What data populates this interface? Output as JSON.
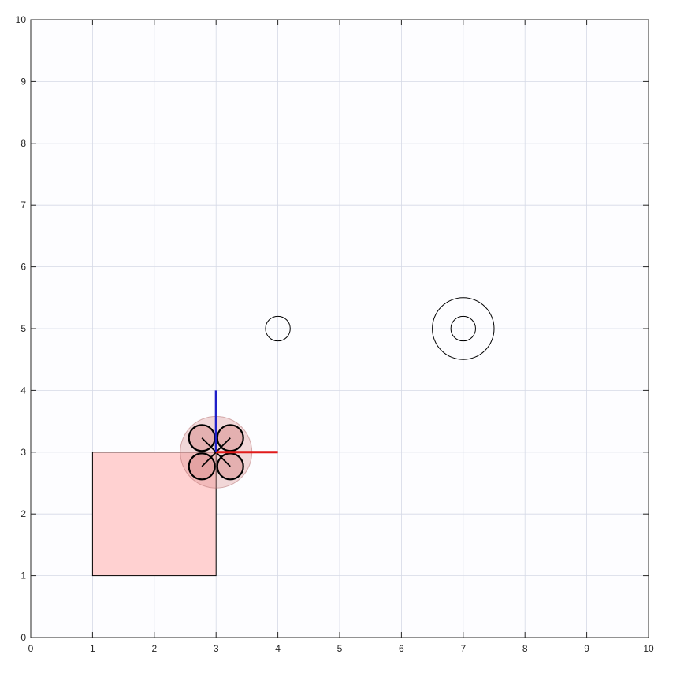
{
  "chart_data": {
    "type": "scatter",
    "title": "",
    "xlabel": "",
    "ylabel": "",
    "xlim": [
      0,
      10
    ],
    "ylim": [
      0,
      10
    ],
    "xticks": [
      "0",
      "1",
      "2",
      "3",
      "4",
      "5",
      "6",
      "7",
      "8",
      "9",
      "10"
    ],
    "yticks": [
      "0",
      "1",
      "2",
      "3",
      "4",
      "5",
      "6",
      "7",
      "8",
      "9",
      "10"
    ],
    "grid": true,
    "colors": {
      "background": "#fdfdff",
      "grid": "#d5d9e6",
      "axis": "#262626",
      "region_fill": "#ffd1d1",
      "region_stroke": "#000000",
      "drone_body": "#d98f8f",
      "x_axis": "#e11b1b",
      "y_axis": "#1f1fc8"
    },
    "shapes": [
      {
        "kind": "rectangle",
        "x": 1,
        "y": 1,
        "width": 2,
        "height": 2,
        "fill": "#ffd1d1",
        "stroke": "#000000"
      },
      {
        "kind": "circle",
        "cx": 4,
        "cy": 5,
        "r": 0.2,
        "stroke": "#000000"
      },
      {
        "kind": "circle",
        "cx": 7,
        "cy": 5,
        "r": 0.5,
        "stroke": "#000000"
      },
      {
        "kind": "circle",
        "cx": 7,
        "cy": 5,
        "r": 0.2,
        "stroke": "#000000"
      }
    ],
    "drone": {
      "x": 3,
      "y": 3,
      "hull_radius": 0.58,
      "rotor_radius": 0.21,
      "rotor_offset": 0.23,
      "axis_length": 1,
      "x_axis_color": "#e11b1b",
      "y_axis_color": "#1f1fc8"
    }
  }
}
